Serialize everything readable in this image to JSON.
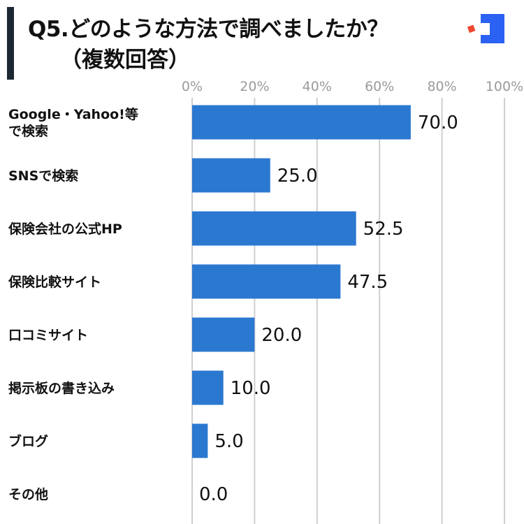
{
  "header": {
    "title_line1": "Q5.どのような方法で調べましたか？",
    "title_line2": "（複数回答）"
  },
  "colors": {
    "bar": "#2b78d0",
    "grid": "#cfcfcf",
    "title_bar": "#1c2733",
    "logo_blue": "#2b62f3",
    "logo_red": "#f0462f"
  },
  "chart_data": {
    "type": "bar",
    "orientation": "horizontal",
    "categories": [
      [
        "Google・Yahoo!等",
        "で検索"
      ],
      [
        "SNSで検索"
      ],
      [
        "保険会社の公式HP"
      ],
      [
        "保険比較サイト"
      ],
      [
        "口コミサイト"
      ],
      [
        "掲示板の書き込み"
      ],
      [
        "ブログ"
      ],
      [
        "その他"
      ]
    ],
    "values": [
      70.0,
      25.0,
      52.5,
      47.5,
      20.0,
      10.0,
      5.0,
      0.0
    ],
    "value_labels": [
      "70.0",
      "25.0",
      "52.5",
      "47.5",
      "20.0",
      "10.0",
      "5.0",
      "0.0"
    ],
    "xlim": [
      0,
      100
    ],
    "xticks": [
      0,
      20,
      40,
      60,
      80,
      100
    ],
    "xtick_labels": [
      "0%",
      "20%",
      "40%",
      "60%",
      "80%",
      "100%"
    ],
    "grid": true,
    "title": "Q5.どのような方法で調べましたか？（複数回答）"
  }
}
